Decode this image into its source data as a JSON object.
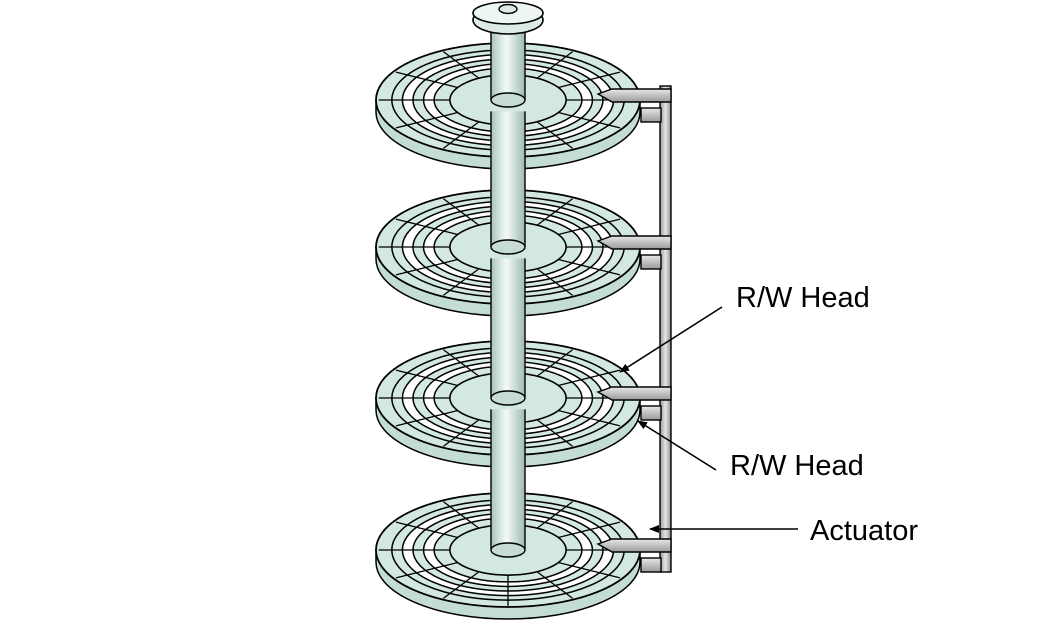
{
  "labels": {
    "rw_head_top": "R/W Head",
    "rw_head_bottom": "R/W Head",
    "actuator": "Actuator"
  },
  "platter_count": 4,
  "colors": {
    "platter_fill": "#d4e8e2",
    "platter_edge": "#c3ddd5",
    "track_gap": "#ffffff",
    "spindle": "#dcebe6",
    "arm": "#c8c8c8",
    "line": "#000000"
  }
}
